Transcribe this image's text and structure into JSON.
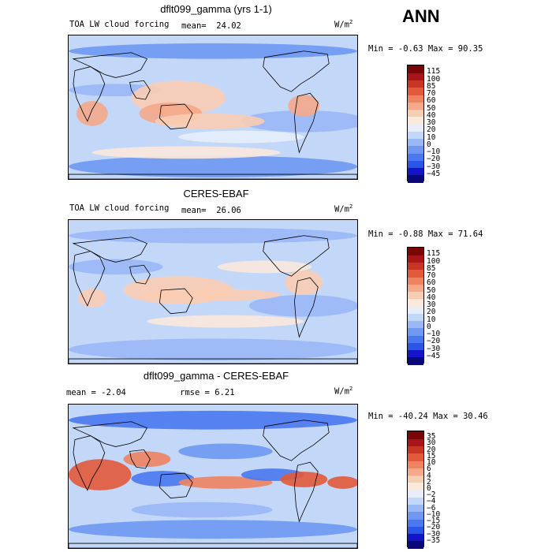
{
  "season": "ANN",
  "units": {
    "base": "W/m",
    "exp": "2"
  },
  "panels": [
    {
      "title": "dflt099_gamma (yrs 1-1)",
      "variable": "TOA LW cloud forcing",
      "mean_label": "mean=",
      "mean_value": "24.02",
      "minmax": "Min =  -0.63 Max =  90.35"
    },
    {
      "title": "CERES-EBAF",
      "variable": "TOA LW cloud forcing",
      "mean_label": "mean=",
      "mean_value": "26.06",
      "minmax": "Min =  -0.88 Max =  71.64"
    },
    {
      "title": "dflt099_gamma - CERES-EBAF",
      "mean_text": "mean =   -2.04",
      "rmse_text": "rmse =   6.21",
      "minmax": "Min = -40.24 Max =  30.46"
    }
  ],
  "colors": {
    "field_levels": [
      "#08087a",
      "#1414c8",
      "#2a55e6",
      "#4a78ee",
      "#6e98f2",
      "#9ab8f6",
      "#c3d8f8",
      "#e6eefa",
      "#fbe9dc",
      "#f9cdb2",
      "#f5a98a",
      "#ee8360",
      "#e25a3a",
      "#c93524",
      "#a8161a",
      "#7a0606"
    ],
    "diff_levels": [
      "#08087a",
      "#1414c8",
      "#2a55e6",
      "#4a78ee",
      "#6e98f2",
      "#9ab8f6",
      "#c3d8f8",
      "#e6eefa",
      "#fbe9dc",
      "#f9cdb2",
      "#f5a98a",
      "#ee8360",
      "#e25a3a",
      "#c93524",
      "#a8161a",
      "#7a0606"
    ]
  },
  "chart_data": [
    {
      "type": "heatmap",
      "title": "dflt099_gamma (yrs 1-1)",
      "subtitle": "TOA LW cloud forcing",
      "units": "W/m2",
      "mean": 24.02,
      "min": -0.63,
      "max": 90.35,
      "contour_levels": [
        -45,
        -30,
        -20,
        -10,
        0,
        10,
        20,
        30,
        40,
        50,
        60,
        70,
        85,
        100,
        115
      ]
    },
    {
      "type": "heatmap",
      "title": "CERES-EBAF",
      "subtitle": "TOA LW cloud forcing",
      "units": "W/m2",
      "mean": 26.06,
      "min": -0.88,
      "max": 71.64,
      "contour_levels": [
        -45,
        -30,
        -20,
        -10,
        0,
        10,
        20,
        30,
        40,
        50,
        60,
        70,
        85,
        100,
        115
      ]
    },
    {
      "type": "heatmap",
      "title": "dflt099_gamma - CERES-EBAF",
      "units": "W/m2",
      "mean": -2.04,
      "rmse": 6.21,
      "min": -40.24,
      "max": 30.46,
      "contour_levels": [
        -35,
        -30,
        -20,
        -15,
        -10,
        -6,
        -4,
        -2,
        0,
        2,
        4,
        6,
        10,
        15,
        20,
        30,
        35
      ]
    }
  ],
  "colorbar_labels": {
    "field": [
      "115",
      "100",
      "85",
      "70",
      "60",
      "50",
      "40",
      "30",
      "20",
      "10",
      "0",
      "−10",
      "−20",
      "−30",
      "−45"
    ],
    "diff": [
      "35",
      "30",
      "20",
      "15",
      "10",
      "6",
      "4",
      "2",
      "0",
      "−2",
      "−4",
      "−6",
      "−10",
      "−15",
      "−20",
      "−30",
      "−35"
    ]
  }
}
